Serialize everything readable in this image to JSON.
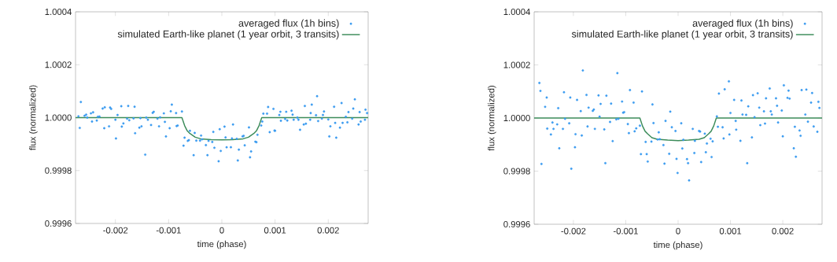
{
  "chart_data": [
    {
      "type": "scatter",
      "xlabel": "time (phase)",
      "ylabel": "flux (normalized)",
      "xlim": [
        -0.00275,
        0.00275
      ],
      "ylim": [
        0.9996,
        1.0004
      ],
      "xticks": [
        -0.002,
        -0.001,
        0,
        0.001,
        0.002
      ],
      "yticks": [
        {
          "value": 0.9996,
          "label": "0.9996"
        },
        {
          "value": 0.9998,
          "label": "0.9998"
        },
        {
          "value": 1,
          "label": "1.0000"
        },
        {
          "value": 1.0002,
          "label": "1.0002"
        },
        {
          "value": 1.0004,
          "label": "1.0004"
        }
      ],
      "grid": false,
      "legend": "top right",
      "series": [
        {
          "name": "averaged flux (1h bins)",
          "marker": "circle",
          "color": "#3a9bf0",
          "x": [
            -0.002695,
            -0.00265,
            -0.00267,
            -0.00258,
            -0.00255,
            -0.00253,
            -0.00246,
            -0.00244,
            -0.00242,
            -0.00235,
            -0.00233,
            -0.0023,
            -0.00224,
            -0.00221,
            -0.0022,
            -0.00212,
            -0.0021,
            -0.00208,
            -0.002,
            -0.00199,
            -0.00196,
            -0.00189,
            -0.00188,
            -0.00185,
            -0.00178,
            -0.00176,
            -0.00174,
            -0.00166,
            -0.00164,
            -0.00163,
            -0.00155,
            -0.00153,
            -0.00151,
            -0.00144,
            -0.00142,
            -0.00139,
            -0.00133,
            -0.0013,
            -0.00128,
            -0.00121,
            -0.00118,
            -0.00116,
            -0.00109,
            -0.00107,
            -0.00105,
            -0.00098,
            -0.00096,
            -0.00094,
            -0.00086,
            -0.00085,
            -0.00083,
            -0.00075,
            -0.00072,
            -0.0007,
            -0.00064,
            -0.00062,
            -0.0006,
            -0.00053,
            -0.00051,
            -0.00048,
            -0.00041,
            -0.00039,
            -0.00037,
            -0.0003,
            -0.00027,
            -0.00025,
            -0.00018,
            -0.00016,
            -0.00014,
            -6e-05,
            -4e-05,
            -2e-05,
            5e-05,
            7e-05,
            9e-05,
            0.00017,
            0.00019,
            0.00021,
            0.00028,
            0.0003,
            0.00032,
            0.00039,
            0.00041,
            0.00043,
            0.00051,
            0.00053,
            0.00055,
            0.00063,
            0.00065,
            0.00067,
            0.00074,
            0.00076,
            0.00078,
            0.00085,
            0.00087,
            0.0009,
            0.00097,
            0.00099,
            0.001,
            0.00108,
            0.0011,
            0.00111,
            0.00119,
            0.00121,
            0.00123,
            0.00131,
            0.00133,
            0.00135,
            0.00142,
            0.00144,
            0.00147,
            0.00154,
            0.00156,
            0.00158,
            0.00166,
            0.00167,
            0.00169,
            0.00177,
            0.00179,
            0.00181,
            0.00188,
            0.0019,
            0.00192,
            0.002,
            0.00202,
            0.00204,
            0.00211,
            0.00213,
            0.00215,
            0.00222,
            0.00225,
            0.00227,
            0.00233,
            0.00236,
            0.00238,
            0.00245,
            0.00247,
            0.0025,
            0.00257,
            0.00259,
            0.00261,
            0.00269,
            0.0027,
            0.00273
          ],
          "values": [
            1.000005,
            1.000059,
            0.999961,
            1.000007,
            1.000011,
            1.0,
            1.000016,
            0.999985,
            1.00002,
            0.999989,
            1.000003,
            1.000004,
            1.000034,
            0.99996,
            1.000039,
            0.999967,
            1.000038,
            1.000033,
            0.999992,
            0.999921,
            1.00001,
            1.000043,
            0.999966,
            0.999978,
            0.999996,
            1.000044,
            0.99999,
            0.999997,
            1.000041,
            0.999941,
            0.999962,
            0.999998,
            0.999967,
            0.99986,
            1.0,
            0.999992,
            0.999972,
            1.000018,
            1.000022,
            0.999996,
            0.999967,
            1.000001,
            1.000016,
            0.999984,
            0.999929,
            0.99996,
            1.000024,
            1.000049,
            1.000017,
            0.999968,
            0.99997,
            1.000023,
            0.999894,
            0.999924,
            0.999912,
            0.999915,
            0.99995,
            0.999858,
            0.999942,
            0.999913,
            0.999913,
            0.999932,
            0.999918,
            0.999896,
            0.999858,
            0.999912,
            0.999908,
            0.999946,
            0.999886,
            0.999835,
            0.999956,
            0.999874,
            0.999966,
            0.999925,
            0.999888,
            0.999888,
            0.999921,
            0.999974,
            0.99992,
            0.999838,
            0.999879,
            0.999929,
            0.999931,
            0.999895,
            0.999963,
            0.99985,
            0.999872,
            0.999909,
            0.999907,
            0.999935,
            0.99997,
            0.999985,
            1.000015,
            1.000015,
            1.00004,
            0.999945,
            1.000033,
            0.999951,
            0.99995,
            1.00001,
            1.000022,
            0.999988,
            0.999995,
            1.000022,
            0.999989,
            1.000026,
            1.000011,
            0.999992,
            1.0,
            0.999992,
            0.999954,
            0.999974,
            1.000044,
            0.999977,
            0.999992,
            1.000017,
            1.000049,
            1.000009,
            1.000081,
            0.999987,
            0.999996,
            1.00001,
            1.000023,
            0.999993,
            0.999929,
            0.999967,
            1.000041,
            0.99998,
            0.999924,
            0.999962,
            1.000055,
            0.99998,
            1.000003,
            0.999982,
            1.000021,
            0.999996,
            1.000034,
            1.000069,
            0.999974,
            1.000021,
            0.999985,
            0.999992,
            1.00003,
            1.000017
          ]
        },
        {
          "name": "simulated Earth-like planet (1 year orbit, 3 transits)",
          "type": "line",
          "marker": "none",
          "color": "#3c8c5a",
          "x": [
            -0.00275,
            -0.00075,
            -0.0007,
            -0.00065,
            -0.0006,
            -0.0005,
            -0.0004,
            -0.0002,
            0,
            0.0002,
            0.0004,
            0.0005,
            0.0006,
            0.00065,
            0.0007,
            0.00075,
            0.00275
          ],
          "values": [
            1,
            1,
            0.99997,
            0.99995,
            0.99994,
            0.999926,
            0.99992,
            0.999917,
            0.999916,
            0.999917,
            0.99992,
            0.999926,
            0.99994,
            0.99995,
            0.99997,
            1,
            1
          ]
        }
      ]
    },
    {
      "type": "scatter",
      "xlabel": "time (phase)",
      "ylabel": "flux (normalized)",
      "xlim": [
        -0.00275,
        0.00275
      ],
      "ylim": [
        0.9996,
        1.0004
      ],
      "xticks": [
        -0.002,
        -0.001,
        0,
        0.001,
        0.002
      ],
      "yticks": [
        {
          "value": 0.9996,
          "label": "0.9996"
        },
        {
          "value": 0.9998,
          "label": "0.9998"
        },
        {
          "value": 1,
          "label": "1.0000"
        },
        {
          "value": 1.0002,
          "label": "1.0002"
        },
        {
          "value": 1.0004,
          "label": "1.0004"
        }
      ],
      "grid": false,
      "legend": "top right",
      "series": [
        {
          "name": "averaged flux (1h bins)",
          "marker": "circle",
          "color": "#3a9bf0",
          "x": [
            -0.00265,
            -0.00263,
            -0.00261,
            -0.00254,
            -0.00251,
            -0.0025,
            -0.00243,
            -0.0024,
            -0.00238,
            -0.00231,
            -0.00229,
            -0.00227,
            -0.0022,
            -0.00218,
            -0.00216,
            -0.00208,
            -0.00206,
            -0.00204,
            -0.00197,
            -0.00196,
            -0.00193,
            -0.00186,
            -0.00184,
            -0.00182,
            -0.00175,
            -0.00173,
            -0.00171,
            -0.00163,
            -0.00161,
            -0.00159,
            -0.00152,
            -0.0015,
            -0.00148,
            -0.00141,
            -0.00139,
            -0.00137,
            -0.0013,
            -0.00128,
            -0.00125,
            -0.00118,
            -0.00116,
            -0.00114,
            -0.00107,
            -0.00105,
            -0.00103,
            -0.00096,
            -0.00094,
            -0.00092,
            -0.00085,
            -0.00083,
            -0.0008,
            -0.00073,
            -0.00071,
            -0.00069,
            -0.00062,
            -0.0006,
            -0.00058,
            -0.00051,
            -0.00049,
            -0.00047,
            -0.00039,
            -0.00037,
            -0.00035,
            -0.00028,
            -0.00026,
            -0.00024,
            -0.00017,
            -0.00015,
            -0.00012,
            -5e-05,
            -3e-05,
            -1e-05,
            6e-05,
            8e-05,
            0.0001,
            0.00017,
            0.00019,
            0.00021,
            0.00028,
            0.00031,
            0.00032,
            0.0004,
            0.00042,
            0.00044,
            0.00051,
            0.00053,
            0.00055,
            0.00062,
            0.00064,
            0.00066,
            0.00074,
            0.00076,
            0.00078,
            0.00085,
            0.00087,
            0.00089,
            0.00097,
            0.00098,
            0.001,
            0.00107,
            0.0011,
            0.00111,
            0.00119,
            0.00121,
            0.00123,
            0.0013,
            0.00132,
            0.00134,
            0.00141,
            0.00143,
            0.00146,
            0.00152,
            0.00155,
            0.00157,
            0.00164,
            0.00166,
            0.00168,
            0.00175,
            0.00177,
            0.00179,
            0.00187,
            0.00189,
            0.00191,
            0.00198,
            0.002,
            0.00202,
            0.00209,
            0.00211,
            0.00213,
            0.00221,
            0.00223,
            0.00225,
            0.00232,
            0.00234,
            0.00236,
            0.00243,
            0.00245,
            0.00248,
            0.00254,
            0.00256,
            0.00259,
            0.00266,
            0.00268,
            0.0027
          ],
          "values": [
            1.000132,
            1.000102,
            0.999827,
            1.000042,
            1.000077,
            0.99996,
            0.999938,
            0.999983,
            0.999959,
            0.999976,
            1.000037,
            0.999886,
            0.999959,
            1.000097,
            0.999997,
            0.99998,
            1.000077,
            0.999809,
            0.99989,
            0.999939,
            1.000068,
            1.000026,
            0.999934,
            1.000179,
            1.000087,
            0.999968,
            1.000039,
            1.000027,
            1.000032,
            0.999959,
            1.000085,
            1.000005,
            1.000053,
            0.999957,
            0.99983,
            1.000084,
            0.999985,
            1.000054,
            0.999913,
            0.999995,
            1.000169,
            0.999997,
            1.000062,
            1.00002,
            1.000022,
            0.999977,
            0.999943,
            1.000105,
            1.000058,
            0.99995,
            0.999961,
            0.999971,
            0.999864,
            1.0001,
            0.99991,
            0.999864,
            0.999836,
            0.999911,
            1.000051,
            0.999981,
            0.999919,
            0.999946,
            0.99992,
            0.999898,
            0.999828,
            0.999989,
            0.999865,
            1.000024,
            0.999965,
            0.999951,
            0.999846,
            0.999793,
            0.99998,
            0.999885,
            0.999918,
            0.999845,
            0.99983,
            0.999765,
            0.999959,
            0.999868,
            0.999914,
            0.999951,
            0.999949,
            0.999834,
            0.999941,
            0.999871,
            0.999904,
            0.999922,
            0.999853,
            0.999912,
            1.000006,
            0.999967,
            1.000092,
            0.999965,
            0.999923,
            1.000108,
            1.000138,
            0.999938,
            1.000019,
            1.000068,
            0.999989,
            0.999956,
            0.999914,
            1.000066,
            1.000013,
            1.000012,
            0.99983,
            1.000044,
            0.999927,
            1.000086,
            1.000003,
            1.000093,
            1.000039,
            0.999973,
            1.000025,
            0.999979,
            1.000074,
            1.000111,
            1.000025,
            1.000013,
            1.000074,
            1.000046,
            0.999983,
            1.000028,
            0.999931,
            1.000123,
            1.000076,
            1.000103,
            1.000073,
            0.999886,
            0.999967,
            0.999854,
            0.999953,
            0.999933,
            1.000105,
            1.000013,
            1.000107,
            0.999986,
            1.000058,
            1.000094,
            0.999968,
            0.999948,
            1.000061,
            1.000038
          ]
        },
        {
          "name": "simulated Earth-like planet (1 year orbit, 3 transits)",
          "type": "line",
          "marker": "none",
          "color": "#3c8c5a",
          "x": [
            -0.00275,
            -0.00073,
            -0.00068,
            -0.00063,
            -0.00058,
            -0.0005,
            -0.0004,
            -0.0002,
            0,
            0.0002,
            0.0004,
            0.0005,
            0.00058,
            0.00063,
            0.00068,
            0.00073,
            0.00275
          ],
          "values": [
            1,
            1,
            0.99997,
            0.99995,
            0.99994,
            0.999926,
            0.99992,
            0.999917,
            0.999915,
            0.999917,
            0.99992,
            0.999926,
            0.99994,
            0.99995,
            0.99997,
            1,
            1
          ]
        }
      ]
    }
  ]
}
